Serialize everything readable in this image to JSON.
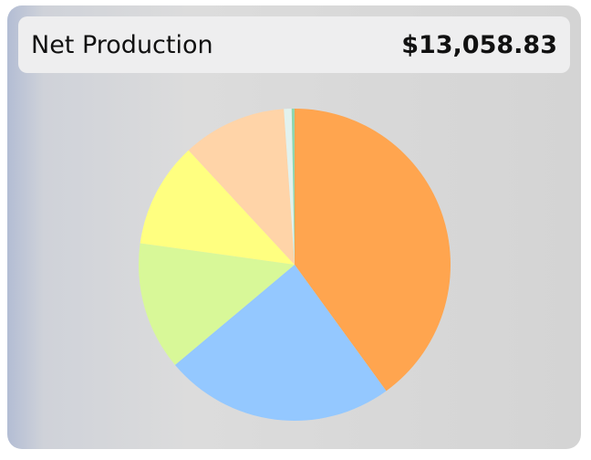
{
  "chart_data": {
    "type": "pie",
    "title": "Net Production",
    "total": "$13,058.83",
    "values": [
      40.0,
      23.9,
      13.3,
      10.9,
      10.8,
      0.8,
      0.3
    ],
    "colors": [
      "#ffa54f",
      "#94c8ff",
      "#d8f898",
      "#ffff80",
      "#ffd4a8",
      "#e2f2ee",
      "#8fd6b0"
    ]
  }
}
